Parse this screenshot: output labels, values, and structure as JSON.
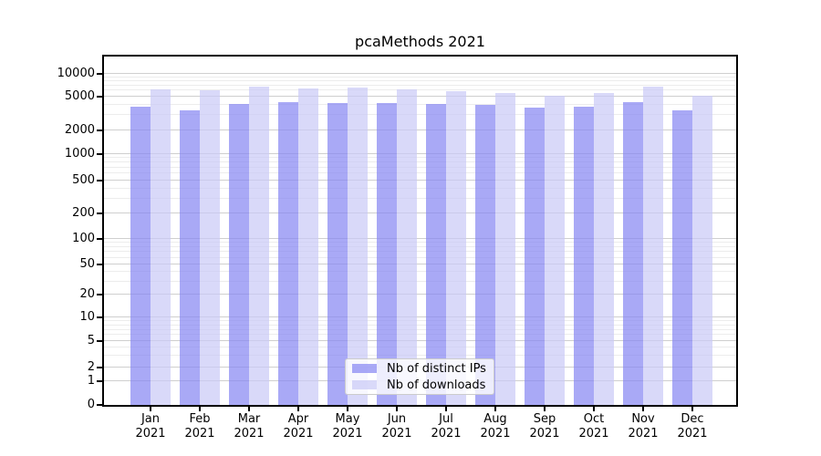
{
  "chart_data": {
    "type": "bar",
    "title": "pcaMethods 2021",
    "x_year_label": "2021",
    "categories": [
      "Jan",
      "Feb",
      "Mar",
      "Apr",
      "May",
      "Jun",
      "Jul",
      "Aug",
      "Sep",
      "Oct",
      "Nov",
      "Dec"
    ],
    "series": [
      {
        "name": "Nb of distinct IPs",
        "color": "rgba(132,132,242,0.7)",
        "values": [
          3800,
          3400,
          4100,
          4300,
          4200,
          4200,
          4100,
          4000,
          3700,
          3800,
          4300,
          3400
        ]
      },
      {
        "name": "Nb of downloads",
        "color": "rgba(201,201,246,0.7)",
        "values": [
          6300,
          6000,
          6700,
          6400,
          6500,
          6300,
          5900,
          5600,
          5100,
          5600,
          6700,
          5100
        ]
      }
    ],
    "y_axis": {
      "scale": "symlog",
      "ticks": [
        {
          "value": 0,
          "frac": 0.0
        },
        {
          "value": 1,
          "frac": 0.0688
        },
        {
          "value": 2,
          "frac": 0.1081
        },
        {
          "value": 5,
          "frac": 0.1824
        },
        {
          "value": 10,
          "frac": 0.2505
        },
        {
          "value": 20,
          "frac": 0.3159
        },
        {
          "value": 50,
          "frac": 0.4031
        },
        {
          "value": 100,
          "frac": 0.4772
        },
        {
          "value": 200,
          "frac": 0.5505
        },
        {
          "value": 500,
          "frac": 0.6447
        },
        {
          "value": 1000,
          "frac": 0.7207
        },
        {
          "value": 2000,
          "frac": 0.7887
        },
        {
          "value": 5000,
          "frac": 0.8848
        },
        {
          "value": 10000,
          "frac": 0.951
        }
      ],
      "minor_tick_values": [
        3,
        4,
        6,
        7,
        8,
        9,
        30,
        40,
        60,
        70,
        80,
        90,
        300,
        400,
        600,
        700,
        800,
        900,
        3000,
        4000,
        6000,
        7000,
        8000,
        9000
      ]
    },
    "legend": {
      "position": "lower center"
    },
    "grid": {
      "major_color": "#cfcfcf",
      "minor_color": "#ececec"
    },
    "colors": {
      "bar_distinct_ips": "#a9a9f6",
      "bar_downloads": "#d9d9f7",
      "spine": "#000000",
      "background": "#ffffff"
    }
  }
}
